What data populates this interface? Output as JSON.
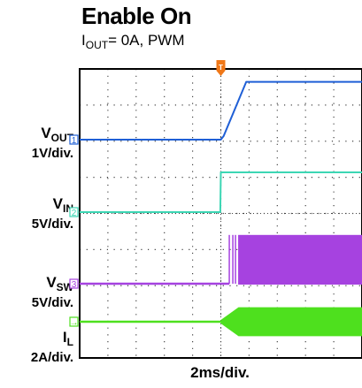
{
  "header": {
    "title": "Enable On",
    "subtitle_sym": "I",
    "subtitle_sub": "OUT",
    "subtitle_rest": "= 0A, PWM"
  },
  "channels": [
    {
      "id": "vout",
      "name": "V",
      "sub": "OUT",
      "scale": "1V/div.",
      "marker": "1",
      "color": "#1f5fd6"
    },
    {
      "id": "vin",
      "name": "V",
      "sub": "IN",
      "scale": "5V/div.",
      "marker": "2",
      "color": "#3cd6b4"
    },
    {
      "id": "vsw",
      "name": "V",
      "sub": "SW",
      "scale": "5V/div.",
      "marker": "3",
      "color": "#a642e0"
    },
    {
      "id": "il",
      "name": "I",
      "sub": "L",
      "scale": "2A/div.",
      "marker": "→",
      "color": "#4ee01e"
    }
  ],
  "trigger": {
    "label": "T",
    "color": "#f07818"
  },
  "xaxis": {
    "label": "2ms/div."
  },
  "chart_data": {
    "type": "line",
    "title": "Enable On",
    "subtitle": "IOUT= 0A, PWM",
    "xlabel": "2ms/div.",
    "grid": true,
    "x_divisions": 10,
    "y_divisions": 8,
    "trigger_time_div": 5,
    "series": [
      {
        "name": "VOUT",
        "scale": "1V/div.",
        "x_div": [
          0,
          5.0,
          5.1,
          5.9,
          10
        ],
        "y_div": [
          0,
          0,
          0.1,
          1.6,
          1.6
        ]
      },
      {
        "name": "VIN",
        "scale": "5V/div.",
        "x_div": [
          0,
          4.98,
          5.0,
          10
        ],
        "y_div": [
          0,
          0,
          1.1,
          1.1
        ]
      },
      {
        "name": "VSW",
        "scale": "5V/div.",
        "x_div": [
          0,
          5.3,
          10
        ],
        "y_div": [
          0,
          0,
          1.35
        ],
        "switching_from_div": 5.3
      },
      {
        "name": "IL",
        "scale": "2A/div.",
        "x_div": [
          0,
          5.3,
          10
        ],
        "y_div": [
          0,
          0,
          0
        ],
        "ripple_amplitude_div": 0.4
      }
    ]
  }
}
